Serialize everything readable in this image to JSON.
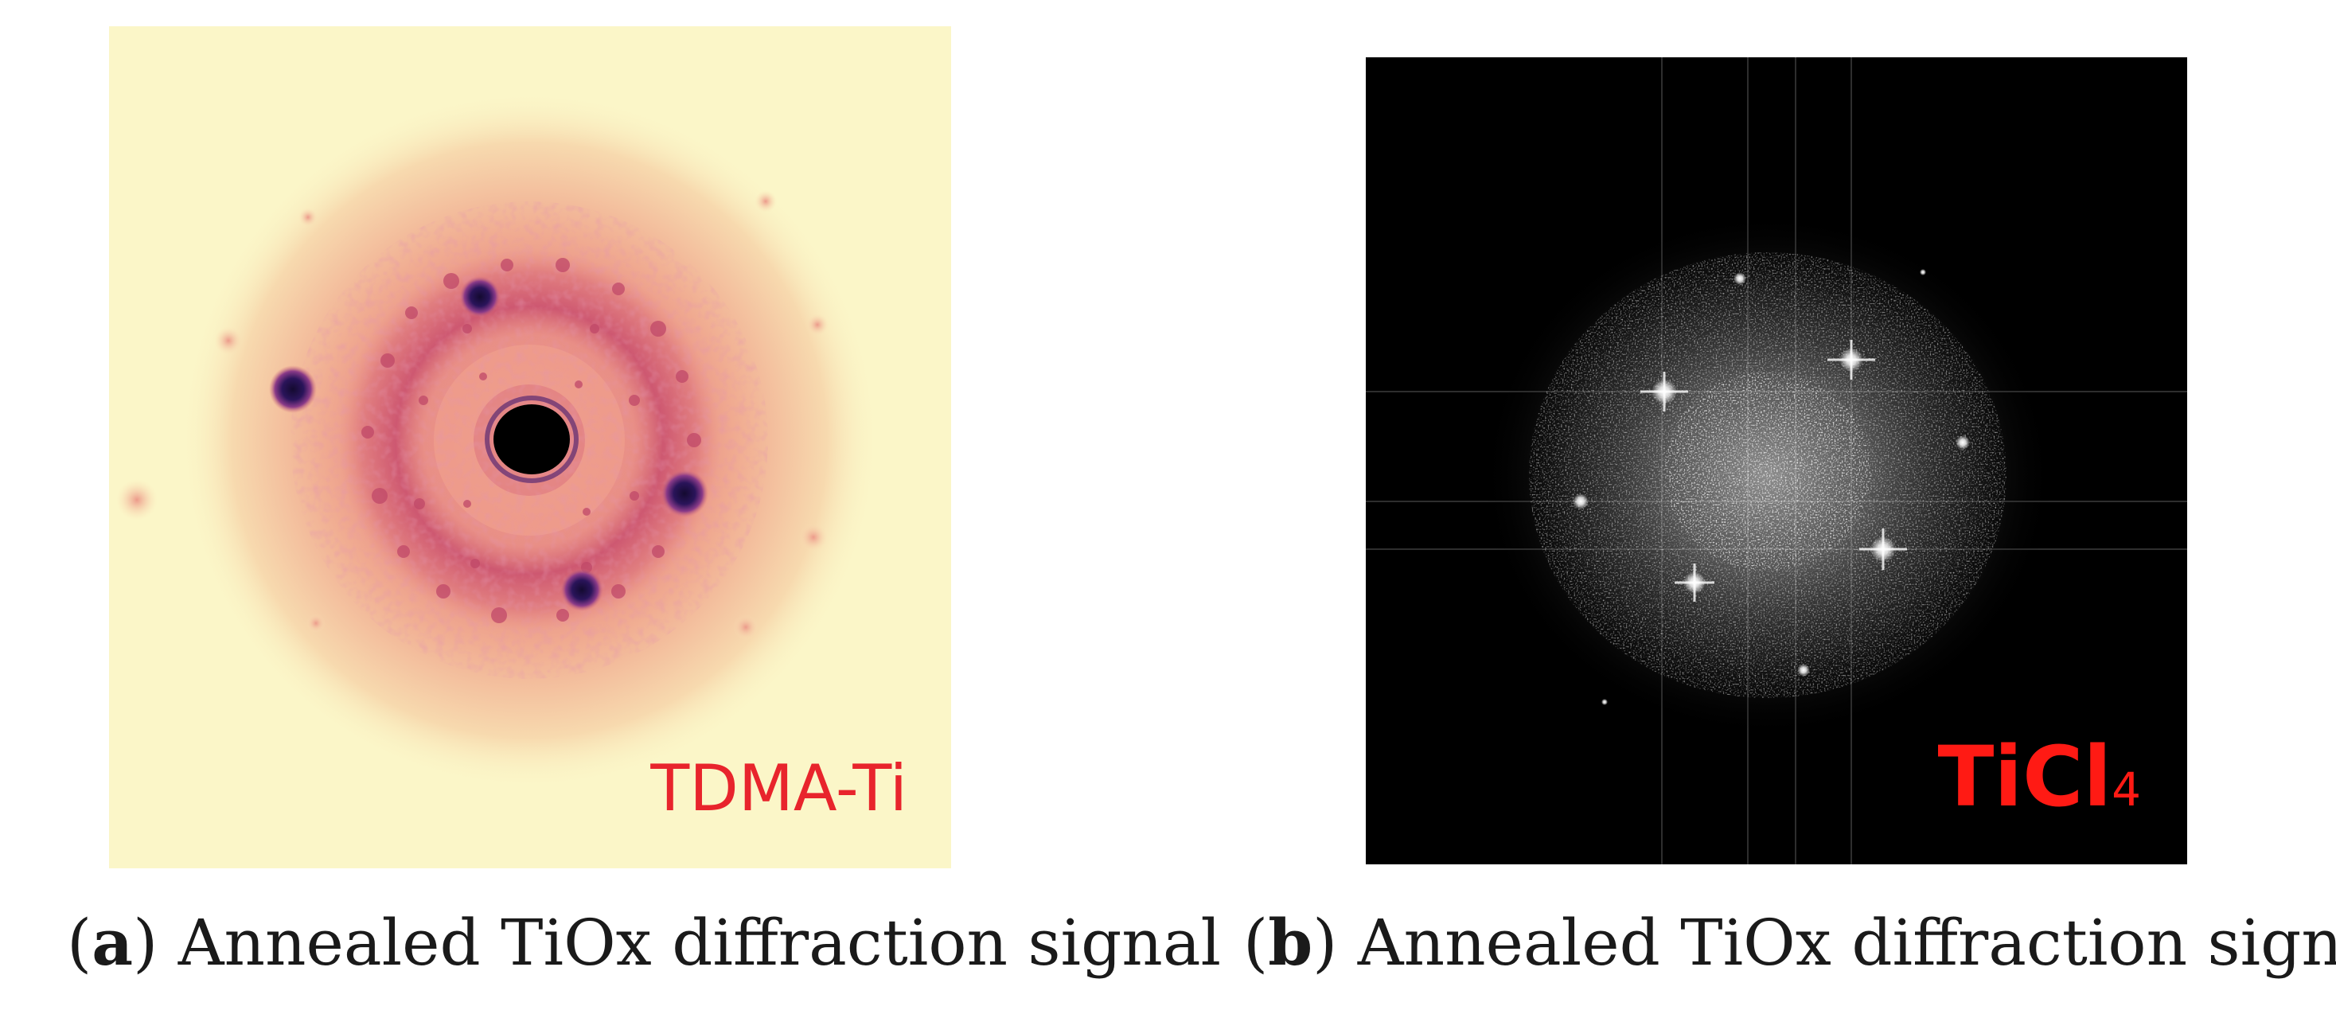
{
  "panels": [
    {
      "id": "a",
      "label": "TDMA-Ti",
      "caption_open": "(",
      "caption_tag": "a",
      "caption_close": ")",
      "caption_text": " Annealed TiOx diffraction signal",
      "background_color": "#fbf6c8",
      "label_color": "#e8242c"
    },
    {
      "id": "b",
      "label_main": "TiCl",
      "label_sub": "4",
      "caption_open": "(",
      "caption_tag": "b",
      "caption_close": ")",
      "caption_text": " Annealed TiOx diffraction signal",
      "background_color": "#000000",
      "label_color": "#ff1a14"
    }
  ]
}
